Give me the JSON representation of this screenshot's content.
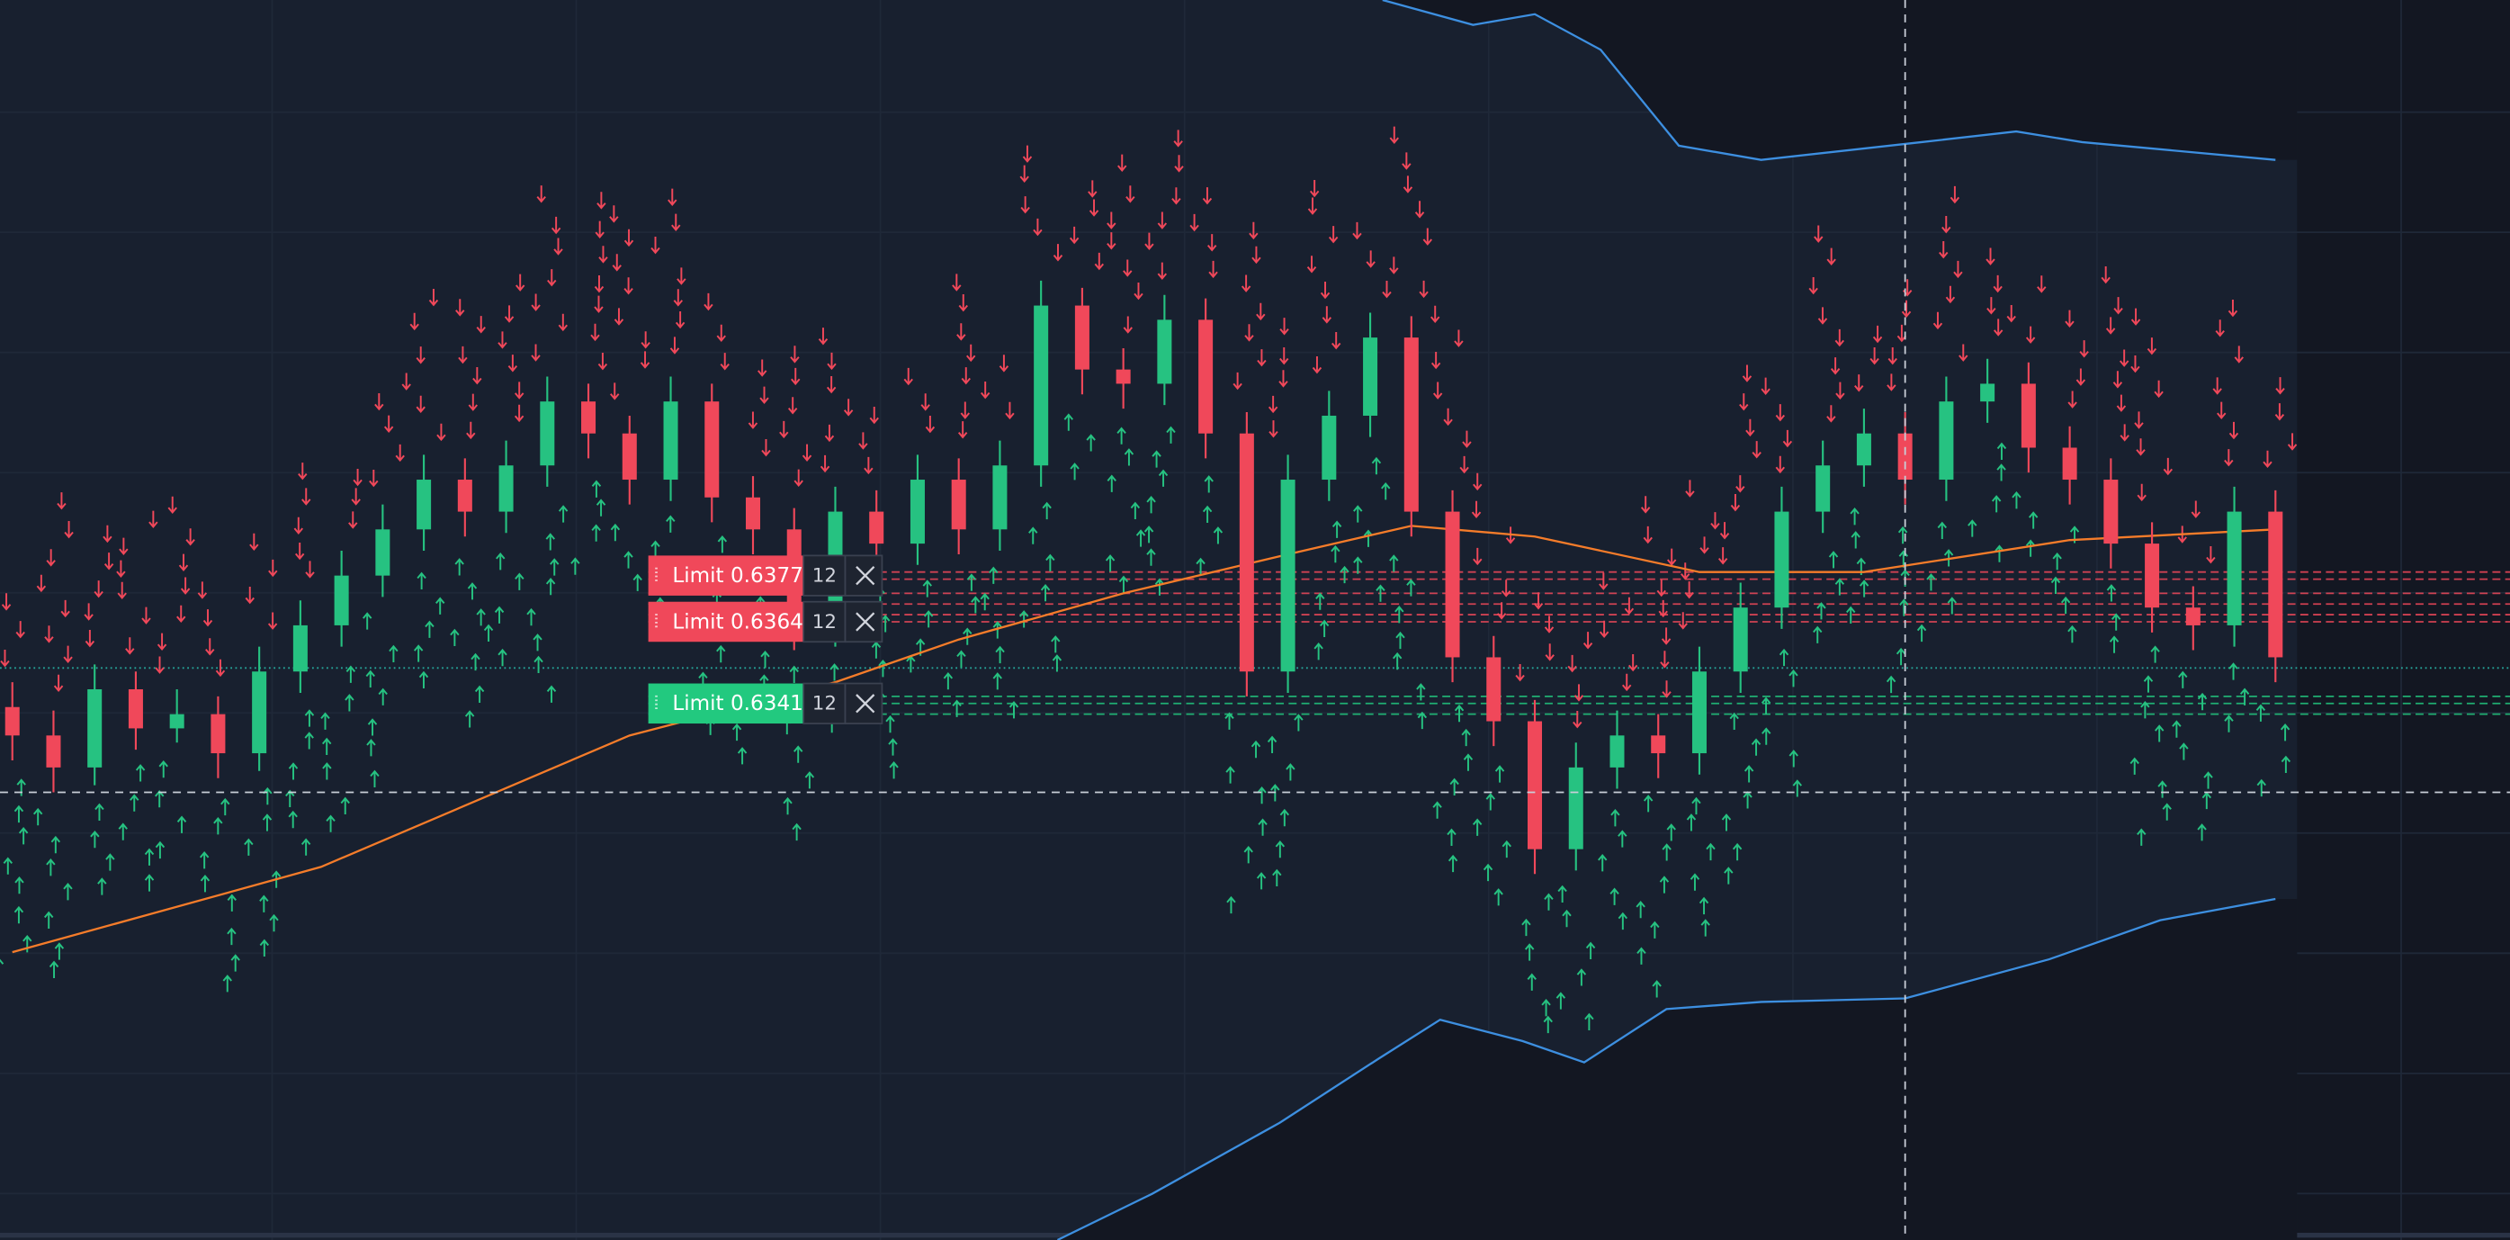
{
  "chart_data": {
    "type": "candlestick",
    "xlim": [
      -0.3,
      60.7
    ],
    "ylim": [
      0.619,
      0.6539
    ],
    "up_color": "#26c281",
    "down_color": "#f0485a",
    "open": [
      0.634,
      0.6332,
      0.6323,
      0.6345,
      0.6334,
      0.6338,
      0.6327,
      0.635,
      0.6363,
      0.6377,
      0.639,
      0.6404,
      0.6395,
      0.6408,
      0.6426,
      0.6417,
      0.6404,
      0.6426,
      0.6399,
      0.639,
      0.6363,
      0.6395,
      0.6386,
      0.6404,
      0.639,
      0.6408,
      0.6453,
      0.6435,
      0.6431,
      0.6449,
      0.6417,
      0.635,
      0.6404,
      0.6422,
      0.6444,
      0.6395,
      0.6354,
      0.6336,
      0.63,
      0.6323,
      0.6332,
      0.6327,
      0.635,
      0.6368,
      0.6395,
      0.6408,
      0.6417,
      0.6404,
      0.6426,
      0.6431,
      0.6413,
      0.6404,
      0.6386,
      0.6368,
      0.6363,
      0.6395
    ],
    "high": [
      0.6347,
      0.6339,
      0.6352,
      0.635,
      0.6345,
      0.6343,
      0.6357,
      0.637,
      0.6384,
      0.6397,
      0.6411,
      0.641,
      0.6415,
      0.6433,
      0.6431,
      0.6422,
      0.6433,
      0.6431,
      0.6405,
      0.6396,
      0.6402,
      0.6401,
      0.6411,
      0.641,
      0.6415,
      0.646,
      0.6458,
      0.6441,
      0.6456,
      0.6455,
      0.6423,
      0.6411,
      0.6429,
      0.6451,
      0.645,
      0.6401,
      0.636,
      0.6342,
      0.633,
      0.6339,
      0.6338,
      0.6357,
      0.6375,
      0.6402,
      0.6415,
      0.6424,
      0.6423,
      0.6433,
      0.6438,
      0.6437,
      0.6419,
      0.641,
      0.6392,
      0.6374,
      0.6402,
      0.6401
    ],
    "low": [
      0.6325,
      0.6316,
      0.6318,
      0.6328,
      0.633,
      0.632,
      0.6322,
      0.6344,
      0.6357,
      0.6371,
      0.6384,
      0.6388,
      0.6389,
      0.6402,
      0.641,
      0.6397,
      0.6398,
      0.6392,
      0.6383,
      0.6356,
      0.6357,
      0.6379,
      0.638,
      0.6383,
      0.6384,
      0.6402,
      0.6428,
      0.6424,
      0.6425,
      0.641,
      0.6343,
      0.6344,
      0.6398,
      0.6416,
      0.6388,
      0.6347,
      0.6329,
      0.6293,
      0.6294,
      0.6317,
      0.632,
      0.6321,
      0.6344,
      0.6362,
      0.6389,
      0.6402,
      0.6397,
      0.6398,
      0.642,
      0.6406,
      0.6397,
      0.6379,
      0.6361,
      0.6356,
      0.6357,
      0.6347
    ],
    "close": [
      0.6332,
      0.6323,
      0.6345,
      0.6334,
      0.6338,
      0.6327,
      0.635,
      0.6363,
      0.6377,
      0.639,
      0.6404,
      0.6395,
      0.6408,
      0.6426,
      0.6417,
      0.6404,
      0.6426,
      0.6399,
      0.639,
      0.6363,
      0.6395,
      0.6386,
      0.6404,
      0.639,
      0.6408,
      0.6453,
      0.6435,
      0.6431,
      0.6449,
      0.6417,
      0.635,
      0.6404,
      0.6422,
      0.6444,
      0.6395,
      0.6354,
      0.6336,
      0.63,
      0.6323,
      0.6332,
      0.6327,
      0.635,
      0.6368,
      0.6395,
      0.6408,
      0.6417,
      0.6404,
      0.6426,
      0.6431,
      0.6413,
      0.6404,
      0.6386,
      0.6368,
      0.6363,
      0.6395,
      0.6354
    ],
    "lines": [
      {
        "color": "#f57c2a",
        "x": [
          0,
          7.5,
          15,
          20,
          23,
          27,
          31,
          34,
          37,
          41,
          45,
          50,
          55
        ],
        "values": [
          0.6271,
          0.6295,
          0.6332,
          0.6347,
          0.6359,
          0.6372,
          0.6383,
          0.6391,
          0.6388,
          0.6378,
          0.6378,
          0.6387,
          0.639
        ]
      },
      {
        "color": "#3d8fe0",
        "x": [
          33.3,
          35.5,
          37,
          38.6,
          40.5,
          42.5,
          46.4,
          48.7,
          50.3,
          55
        ],
        "values": [
          0.6539,
          0.6532,
          0.6535,
          0.6525,
          0.6498,
          0.6494,
          0.6499,
          0.6502,
          0.6499,
          0.6494
        ]
      },
      {
        "color": "#3d8fe0",
        "x": [
          25.4,
          27.7,
          30.8,
          33.2,
          34.7,
          36.7,
          38.2,
          40.2,
          42.5,
          46,
          49.5,
          52.2,
          55
        ],
        "values": [
          0.619,
          0.6203,
          0.6223,
          0.6241,
          0.6252,
          0.6246,
          0.624,
          0.6255,
          0.6257,
          0.6258,
          0.6269,
          0.628,
          0.6286
        ]
      }
    ],
    "sell_lines": [
      0.6378,
      0.6376,
      0.6372,
      0.6369,
      0.6366,
      0.6364
    ],
    "buy_lines": [
      0.6343,
      0.6341,
      0.6338
    ],
    "last_price": 0.6351,
    "crosshair": {
      "x": 46.0,
      "y": 0.6316
    },
    "orders": [
      {
        "label": "Limit 0.6377",
        "price": 0.6377,
        "qty": 12,
        "color": "#f0485a"
      },
      {
        "label": "Limit 0.6364",
        "price": 0.6364,
        "qty": 12,
        "color": "#f0485a"
      },
      {
        "label": "Limit 0.6341",
        "price": 0.6341,
        "qty": 12,
        "color": "#22c97f"
      }
    ]
  }
}
